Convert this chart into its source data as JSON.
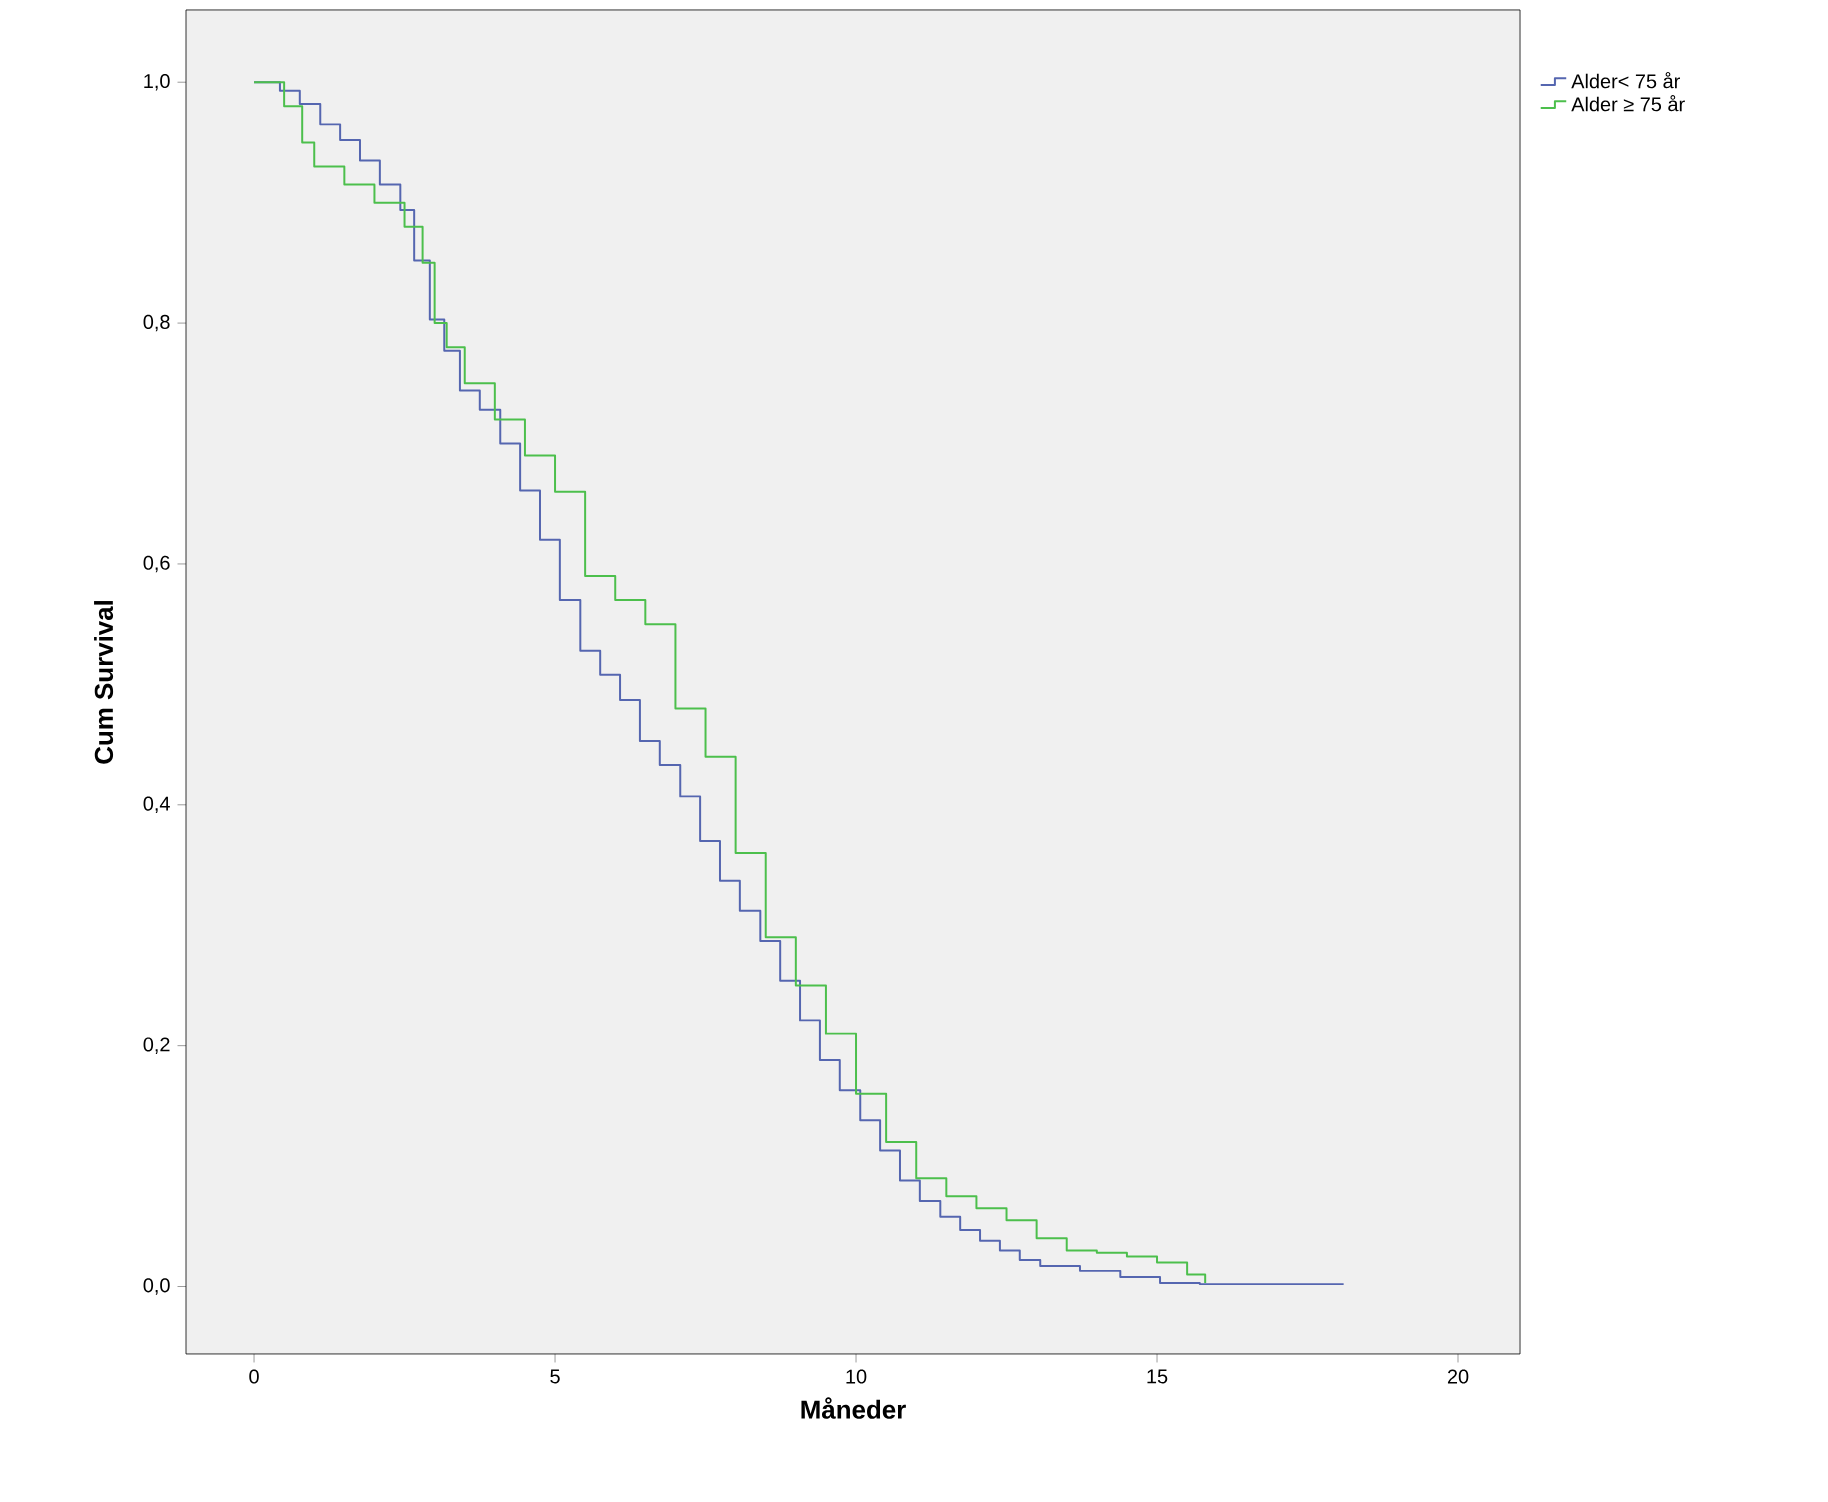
{
  "chart_data": {
    "type": "step",
    "xlabel": "Måneder",
    "ylabel": "Cum Survival",
    "xlim": [
      -1.13,
      21.03
    ],
    "ylim": [
      -0.056,
      1.06
    ],
    "xticks": [
      0,
      5,
      10,
      15,
      20
    ],
    "yticks": [
      {
        "value": 0,
        "label": "0,0"
      },
      {
        "value": 0.2,
        "label": "0,2"
      },
      {
        "value": 0.4,
        "label": "0,4"
      },
      {
        "value": 0.6,
        "label": "0,6"
      },
      {
        "value": 0.8,
        "label": "0,8"
      },
      {
        "value": 1.0,
        "label": "1,0"
      }
    ],
    "grid": false,
    "legend": "top right",
    "marker": "none",
    "line_style": "solid",
    "series": [
      {
        "name": "Alder< 75 år",
        "color": "#5566b0",
        "x": [
          0,
          0.43,
          0.76,
          1.1,
          1.43,
          1.76,
          2.09,
          2.43,
          2.66,
          2.92,
          3.16,
          3.42,
          3.75,
          4.09,
          4.42,
          4.75,
          5.08,
          5.42,
          5.75,
          6.08,
          6.41,
          6.74,
          7.08,
          7.41,
          7.74,
          8.07,
          8.41,
          8.74,
          9.07,
          9.4,
          9.73,
          10.07,
          10.4,
          10.73,
          11.06,
          11.4,
          11.73,
          12.06,
          12.39,
          12.72,
          13.06,
          13.72,
          14.39,
          15.05,
          15.71,
          18.1
        ],
        "values": [
          1.0,
          0.993,
          0.982,
          0.965,
          0.952,
          0.935,
          0.915,
          0.894,
          0.852,
          0.803,
          0.777,
          0.744,
          0.728,
          0.7,
          0.661,
          0.62,
          0.57,
          0.528,
          0.508,
          0.487,
          0.453,
          0.433,
          0.407,
          0.37,
          0.337,
          0.312,
          0.287,
          0.254,
          0.221,
          0.188,
          0.163,
          0.138,
          0.113,
          0.088,
          0.071,
          0.058,
          0.047,
          0.038,
          0.03,
          0.022,
          0.017,
          0.013,
          0.008,
          0.003,
          0.002,
          0.002
        ]
      },
      {
        "name": "Alder ≥ 75 år",
        "color": "#4cbf4c",
        "x": [
          0,
          0.5,
          0.8,
          1.0,
          1.5,
          2.0,
          2.5,
          2.8,
          3.0,
          3.2,
          3.5,
          4.0,
          4.5,
          5.0,
          5.5,
          6.0,
          6.5,
          7.0,
          7.5,
          8.0,
          8.5,
          9.0,
          9.5,
          10.0,
          10.5,
          11.0,
          11.5,
          12.0,
          12.5,
          13.0,
          13.5,
          14.0,
          14.5,
          15.0,
          15.5,
          15.8
        ],
        "values": [
          1.0,
          0.98,
          0.95,
          0.93,
          0.915,
          0.9,
          0.88,
          0.85,
          0.8,
          0.78,
          0.75,
          0.72,
          0.69,
          0.66,
          0.59,
          0.57,
          0.55,
          0.48,
          0.44,
          0.36,
          0.29,
          0.25,
          0.21,
          0.16,
          0.12,
          0.09,
          0.075,
          0.065,
          0.055,
          0.04,
          0.03,
          0.028,
          0.025,
          0.02,
          0.01,
          0.003
        ]
      }
    ]
  }
}
